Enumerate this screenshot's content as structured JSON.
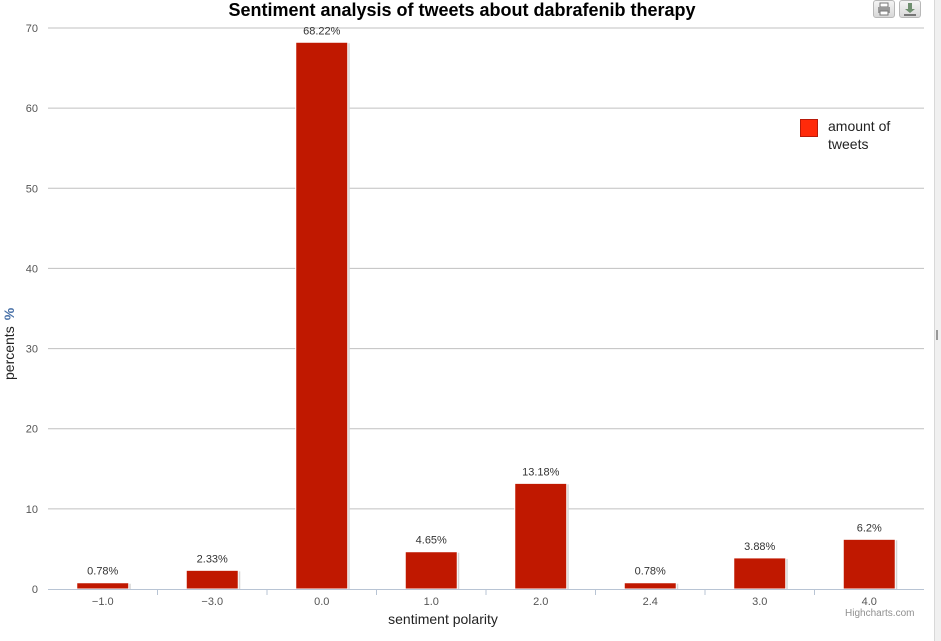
{
  "chart_data": {
    "type": "bar",
    "title": "Sentiment analysis of tweets about dabrafenib therapy",
    "xlabel": "sentiment polarity",
    "ylabel": "percents",
    "ylabel_unit": "%",
    "categories": [
      "−1.0",
      "−3.0",
      "0.0",
      "1.0",
      "2.0",
      "2.4",
      "3.0",
      "4.0"
    ],
    "series": [
      {
        "name": "amount of tweets",
        "values": [
          0.78,
          2.33,
          68.22,
          4.65,
          13.18,
          0.78,
          3.88,
          6.2
        ],
        "labels": [
          "0.78%",
          "2.33%",
          "68.22%",
          "4.65%",
          "13.18%",
          "0.78%",
          "3.88%",
          "6.2%"
        ],
        "color": "#c01800"
      }
    ],
    "ylim": [
      0,
      70
    ],
    "yticks": [
      "0",
      "10",
      "20",
      "30",
      "40",
      "50",
      "60",
      "70"
    ],
    "grid": true,
    "legend_position": "top-right"
  },
  "legend": {
    "label": "amount of tweets",
    "color": "#ff2a0a"
  },
  "credits": "Highcharts.com",
  "icons": {
    "print": "printer-icon",
    "download": "download-icon"
  }
}
